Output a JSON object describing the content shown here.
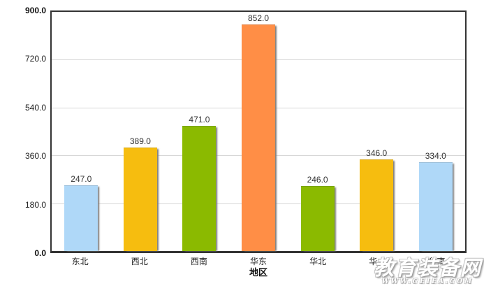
{
  "watermark": {
    "line1": "教育装备网",
    "line2": "WWW.CEIEA.COM"
  },
  "chart_data": {
    "type": "bar",
    "title": "",
    "xlabel": "地区",
    "ylabel": "",
    "ylim": [
      0,
      900
    ],
    "grid": true,
    "legend_position": "none",
    "categories": [
      "东北",
      "西北",
      "西南",
      "华东",
      "华北",
      "华中",
      "华南"
    ],
    "values": [
      247,
      389,
      471,
      852,
      246,
      346,
      334
    ],
    "value_labels": [
      "247.0",
      "389.0",
      "471.0",
      "852.0",
      "246.0",
      "346.0",
      "334.0"
    ],
    "y_ticks": [
      "0.0",
      "180.0",
      "360.0",
      "540.0",
      "720.0",
      "900.0"
    ],
    "bar_colors": [
      "#AFD8F8",
      "#F6BD0F",
      "#8BBA00",
      "#FF8E46",
      "#8BBA00",
      "#F6BD0F",
      "#AFD8F8"
    ],
    "colors": {
      "axis": "#333333",
      "gridline": "#d6d6d6",
      "text": "#222222",
      "bar_shadow": "#7d7d7d",
      "background": "#ffffff"
    }
  }
}
